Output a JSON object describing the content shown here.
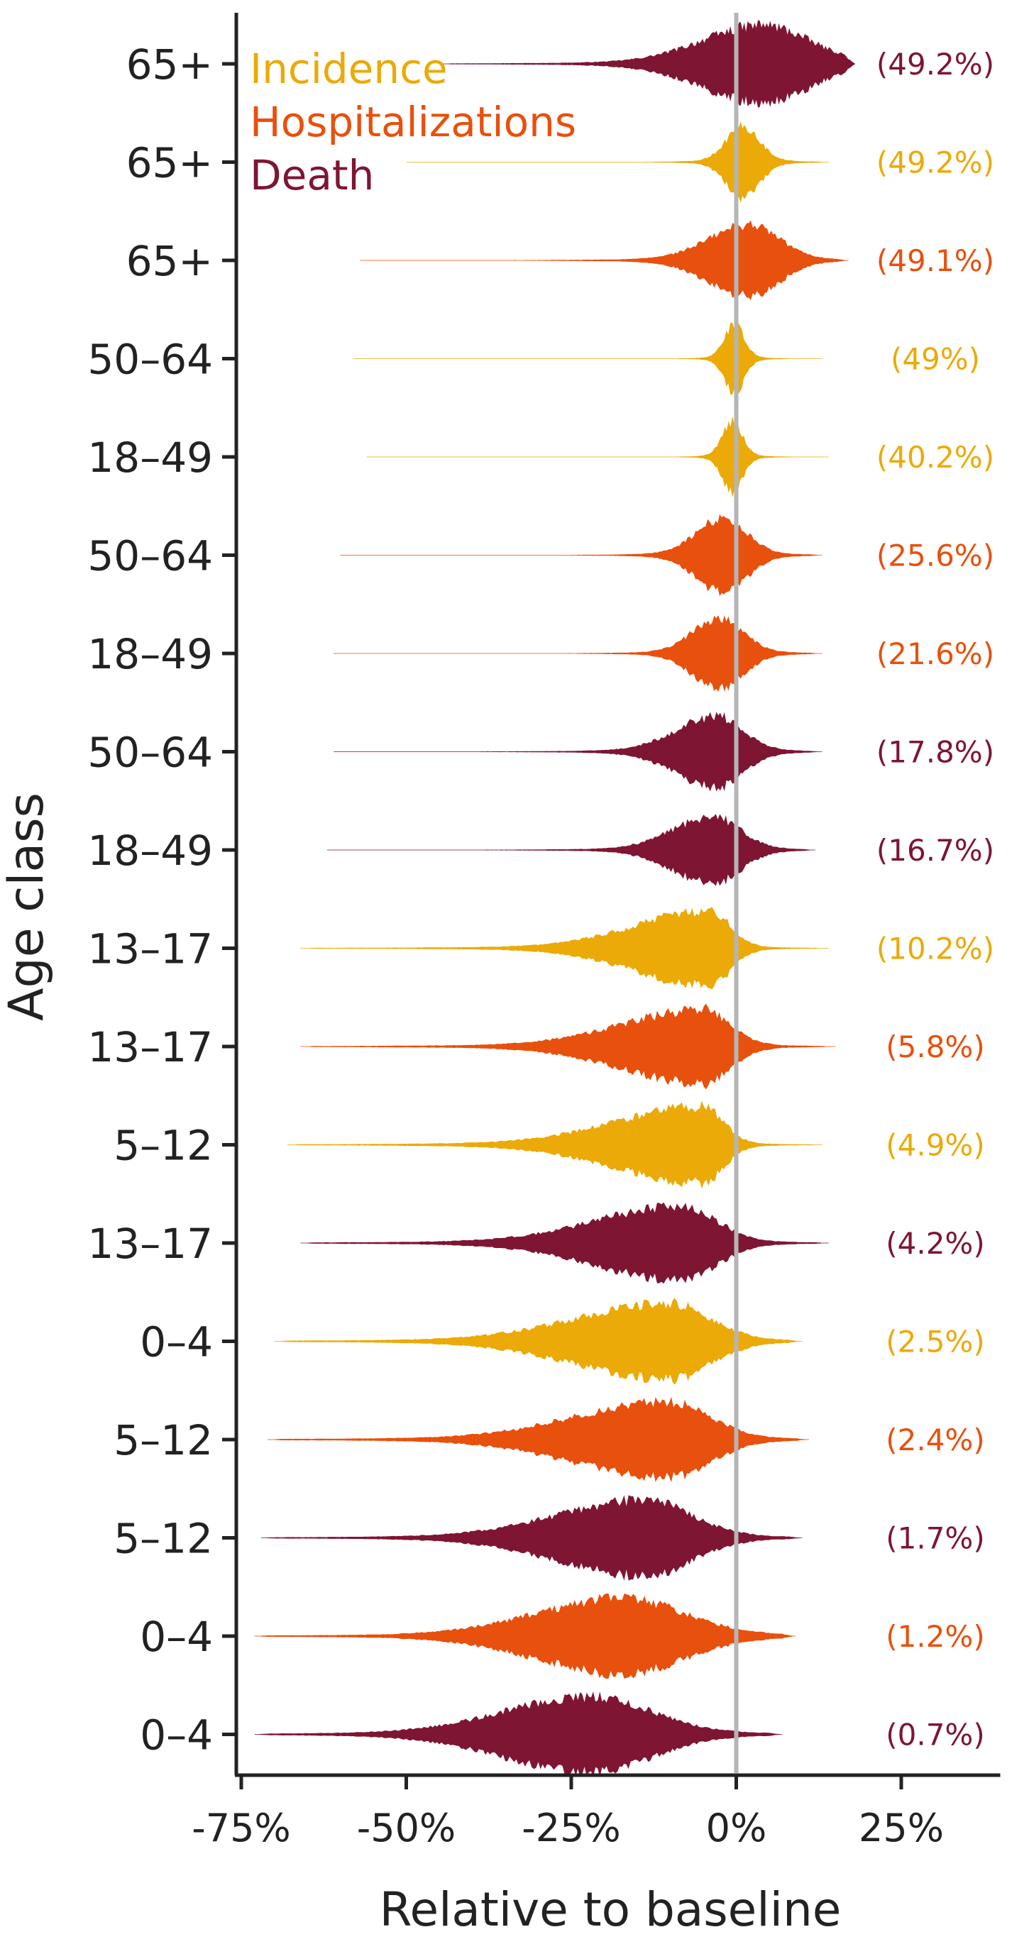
{
  "chart_data": {
    "type": "violin",
    "xlabel": "Relative to baseline",
    "ylabel": "Age class",
    "xlim": [
      -75,
      40
    ],
    "x_ticks": [
      -75,
      -50,
      -25,
      0,
      25
    ],
    "x_tick_labels": [
      "-75%",
      "-50%",
      "-25%",
      "0%",
      "25%"
    ],
    "reference_line_x": 0,
    "legend": [
      {
        "label": "Incidence",
        "color": "#EBAA08"
      },
      {
        "label": "Hospitalizations",
        "color": "#E8500D"
      },
      {
        "label": "Death",
        "color": "#7E1533"
      }
    ],
    "legend_position": "top-left",
    "rows": [
      {
        "age": "65+",
        "series": "Death",
        "color": "#7E1533",
        "pct_label": "(49.2%)",
        "min": -45,
        "max": 18,
        "center": 4,
        "lower_spread": 9,
        "upper_spread": 7,
        "height": 0.92
      },
      {
        "age": "65+",
        "series": "Incidence",
        "color": "#EBAA08",
        "pct_label": "(49.2%)",
        "min": -50,
        "max": 14,
        "center": 1,
        "lower_spread": 2.5,
        "upper_spread": 2.5,
        "height": 0.85
      },
      {
        "age": "65+",
        "series": "Hospitalizations",
        "color": "#E8500D",
        "pct_label": "(49.1%)",
        "min": -57,
        "max": 17,
        "center": 2,
        "lower_spread": 6,
        "upper_spread": 4.5,
        "height": 0.85
      },
      {
        "age": "50–64",
        "series": "Incidence",
        "color": "#EBAA08",
        "pct_label": "(49%)",
        "min": -58,
        "max": 13,
        "center": -0.3,
        "lower_spread": 1.5,
        "upper_spread": 1.5,
        "height": 0.8
      },
      {
        "age": "18–49",
        "series": "Incidence",
        "color": "#EBAA08",
        "pct_label": "(40.2%)",
        "min": -56,
        "max": 14,
        "center": -0.6,
        "lower_spread": 1.5,
        "upper_spread": 1.5,
        "height": 0.85
      },
      {
        "age": "50–64",
        "series": "Hospitalizations",
        "color": "#E8500D",
        "pct_label": "(25.6%)",
        "min": -60,
        "max": 13,
        "center": -2,
        "lower_spread": 4,
        "upper_spread": 3.5,
        "height": 0.88
      },
      {
        "age": "18–49",
        "series": "Hospitalizations",
        "color": "#E8500D",
        "pct_label": "(21.6%)",
        "min": -61,
        "max": 13,
        "center": -2.5,
        "lower_spread": 4,
        "upper_spread": 3.5,
        "height": 0.85
      },
      {
        "age": "50–64",
        "series": "Death",
        "color": "#7E1533",
        "pct_label": "(17.8%)",
        "min": -61,
        "max": 13,
        "center": -3,
        "lower_spread": 6,
        "upper_spread": 4,
        "height": 0.85
      },
      {
        "age": "18–49",
        "series": "Death",
        "color": "#7E1533",
        "pct_label": "(16.7%)",
        "min": -62,
        "max": 12,
        "center": -3.5,
        "lower_spread": 6,
        "upper_spread": 4,
        "height": 0.8
      },
      {
        "age": "13–17",
        "series": "Incidence",
        "color": "#EBAA08",
        "pct_label": "(10.2%)",
        "min": -66,
        "max": 14,
        "center": -4,
        "lower_spread": 11,
        "upper_spread": 3,
        "height": 0.9
      },
      {
        "age": "13–17",
        "series": "Hospitalizations",
        "color": "#E8500D",
        "pct_label": "(5.8%)",
        "min": -66,
        "max": 15,
        "center": -5,
        "lower_spread": 12,
        "upper_spread": 4,
        "height": 0.88
      },
      {
        "age": "5–12",
        "series": "Incidence",
        "color": "#EBAA08",
        "pct_label": "(4.9%)",
        "min": -68,
        "max": 13,
        "center": -5,
        "lower_spread": 13,
        "upper_spread": 3,
        "height": 0.9
      },
      {
        "age": "13–17",
        "series": "Death",
        "color": "#7E1533",
        "pct_label": "(4.2%)",
        "min": -66,
        "max": 14,
        "center": -8,
        "lower_spread": 13,
        "upper_spread": 5,
        "height": 0.88
      },
      {
        "age": "0–4",
        "series": "Incidence",
        "color": "#EBAA08",
        "pct_label": "(2.5%)",
        "min": -70,
        "max": 10,
        "center": -10,
        "lower_spread": 14,
        "upper_spread": 6,
        "height": 0.9
      },
      {
        "age": "5–12",
        "series": "Hospitalizations",
        "color": "#E8500D",
        "pct_label": "(2.4%)",
        "min": -71,
        "max": 11,
        "center": -10,
        "lower_spread": 14,
        "upper_spread": 6,
        "height": 0.9
      },
      {
        "age": "5–12",
        "series": "Death",
        "color": "#7E1533",
        "pct_label": "(1.7%)",
        "min": -72,
        "max": 10,
        "center": -14,
        "lower_spread": 13,
        "upper_spread": 7,
        "height": 0.9
      },
      {
        "age": "0–4",
        "series": "Hospitalizations",
        "color": "#E8500D",
        "pct_label": "(1.2%)",
        "min": -73,
        "max": 9,
        "center": -17,
        "lower_spread": 13,
        "upper_spread": 9,
        "height": 0.9
      },
      {
        "age": "0–4",
        "series": "Death",
        "color": "#7E1533",
        "pct_label": "(0.7%)",
        "min": -73,
        "max": 7,
        "center": -22,
        "lower_spread": 13,
        "upper_spread": 9,
        "height": 0.9
      }
    ]
  }
}
